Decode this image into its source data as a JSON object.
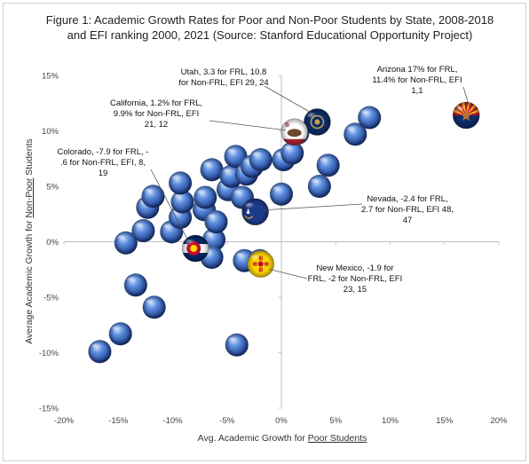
{
  "chart_data": {
    "type": "scatter",
    "title": "Figure 1: Academic Growth Rates for Poor and Non-Poor Students by State, 2008-2018 and EFI ranking 2000, 2021 (Source: Stanford Educational Opportunity Project)",
    "xlabel_prefix": "Avg. Academic Growth for ",
    "xlabel_underlined": "Poor Students",
    "ylabel_prefix": "Average Academic Growth for ",
    "ylabel_underlined": "Non-Poor",
    "ylabel_suffix": " Students",
    "xlim": [
      -20,
      20
    ],
    "ylim": [
      -15,
      15
    ],
    "x_ticks": [
      -20,
      -15,
      -10,
      -5,
      0,
      5,
      10,
      15,
      20
    ],
    "y_ticks": [
      -15,
      -10,
      -5,
      0,
      5,
      10,
      15
    ],
    "x_tick_labels": [
      "-20%",
      "-15%",
      "-10%",
      "-5%",
      "0%",
      "5%",
      "10%",
      "15%",
      "20%"
    ],
    "y_tick_labels": [
      "-15%",
      "-10%",
      "-5%",
      "0%",
      "5%",
      "10%",
      "15%"
    ],
    "grid": false,
    "points": [
      {
        "x": -16.7,
        "y": -9.9
      },
      {
        "x": -14.8,
        "y": -8.3
      },
      {
        "x": -13.4,
        "y": -3.9
      },
      {
        "x": -11.7,
        "y": -5.9
      },
      {
        "x": -14.3,
        "y": -0.1
      },
      {
        "x": -12.7,
        "y": 1.0
      },
      {
        "x": -12.3,
        "y": 3.1
      },
      {
        "x": -11.8,
        "y": 4.1
      },
      {
        "x": -10.1,
        "y": 0.9
      },
      {
        "x": -9.3,
        "y": 2.2
      },
      {
        "x": -9.1,
        "y": 3.6
      },
      {
        "x": -9.3,
        "y": 5.3
      },
      {
        "x": -7.1,
        "y": 2.9
      },
      {
        "x": -7.0,
        "y": 4.0
      },
      {
        "x": -6.2,
        "y": 0.2
      },
      {
        "x": -6.0,
        "y": 1.8
      },
      {
        "x": -6.4,
        "y": -1.4
      },
      {
        "x": -6.4,
        "y": 6.5
      },
      {
        "x": -4.9,
        "y": 4.7
      },
      {
        "x": -4.6,
        "y": 5.9
      },
      {
        "x": -3.6,
        "y": 4.0
      },
      {
        "x": -4.2,
        "y": 7.7
      },
      {
        "x": -3.2,
        "y": 6.1
      },
      {
        "x": -2.7,
        "y": 6.8
      },
      {
        "x": -1.9,
        "y": 7.4
      },
      {
        "x": -3.4,
        "y": -1.7
      },
      {
        "x": -2.0,
        "y": -1.7
      },
      {
        "x": -4.1,
        "y": -9.3
      },
      {
        "x": 0.0,
        "y": 4.3
      },
      {
        "x": 0.2,
        "y": 7.4
      },
      {
        "x": 1.0,
        "y": 8.0
      },
      {
        "x": 1.5,
        "y": 9.8
      },
      {
        "x": 4.3,
        "y": 6.9
      },
      {
        "x": 3.5,
        "y": 5.0
      },
      {
        "x": 6.8,
        "y": 9.7
      },
      {
        "x": 8.1,
        "y": 11.2
      }
    ],
    "flag_points": [
      {
        "x": 17.0,
        "y": 11.4,
        "flag": "arizona-flag-icon",
        "colors": [
          "#c8102e",
          "#fdb813",
          "#b87333",
          "#0c2d6b"
        ]
      },
      {
        "x": 3.3,
        "y": 10.8,
        "flag": "utah-flag-icon",
        "colors": [
          "#0c2d6b",
          "#c8a04a"
        ]
      },
      {
        "x": 1.2,
        "y": 9.9,
        "flag": "california-flag-icon",
        "colors": [
          "#ffffff",
          "#b22234",
          "#6b4a2b"
        ]
      },
      {
        "x": -7.9,
        "y": -0.6,
        "flag": "colorado-flag-icon",
        "colors": [
          "#002868",
          "#ffffff",
          "#bf0a30",
          "#ffd700"
        ]
      },
      {
        "x": -2.4,
        "y": 2.7,
        "flag": "nevada-flag-icon",
        "colors": [
          "#1c3a8a",
          "#c8a04a",
          "#ffffff"
        ]
      },
      {
        "x": -1.9,
        "y": -2.0,
        "flag": "new-mexico-flag-icon",
        "colors": [
          "#ffd700",
          "#bf0a30"
        ]
      }
    ],
    "annotations": [
      {
        "lines": [
          "Arizona 17% for FRL,",
          "11.4% for Non-FRL, EFI",
          "1,1"
        ]
      },
      {
        "lines": [
          "Utah, 3.3 for FRL, 10.8",
          "for Non-FRL, EFI 29, 24"
        ]
      },
      {
        "lines": [
          "California, 1.2% for FRL,",
          "9.9% for Non-FRL, EFI",
          "21, 12"
        ]
      },
      {
        "lines": [
          "Colorado, -7.9 for FRL, -",
          ".6 for Non-FRL, EFI, 8,",
          "19"
        ]
      },
      {
        "lines": [
          "Nevada, -2.4 for FRL,",
          "2.7 for Non-FRL, EFI 48,",
          "47"
        ]
      },
      {
        "lines": [
          "New Mexico, -1.9 for",
          "FRL, -2 for Non-FRL, EFI",
          "23, 15"
        ]
      }
    ],
    "colors": {
      "bubble_light": "#a9c6f5",
      "bubble_mid": "#4a7fd4",
      "bubble_dark": "#1f3f86",
      "axis": "#bfbfbf",
      "leader": "#555555"
    }
  }
}
